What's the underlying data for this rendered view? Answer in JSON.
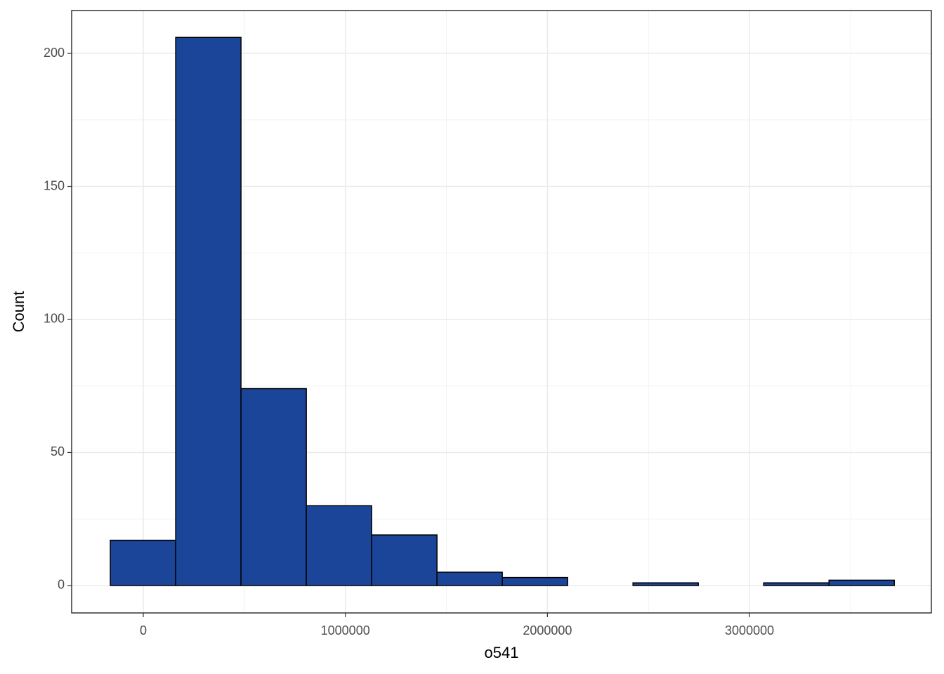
{
  "chart_data": {
    "type": "histogram",
    "x_label": "o541",
    "y_label": "Count",
    "bins": [
      -163000,
      160300,
      483600,
      806900,
      1130200,
      1453500,
      1776800,
      2100100,
      2423400,
      2746700,
      3070000,
      3393300,
      3716600
    ],
    "counts": [
      17,
      206,
      74,
      30,
      19,
      5,
      3,
      0,
      1,
      0,
      1,
      2
    ],
    "color": "#1a4599",
    "edge_color": "#000000",
    "xlim": [
      -354500,
      3900000
    ],
    "ylim": [
      -10.3,
      216.1
    ],
    "xticks": [
      0,
      1000000,
      2000000,
      3000000
    ],
    "yticks": [
      0,
      50,
      100,
      150,
      200
    ],
    "grid": true
  }
}
